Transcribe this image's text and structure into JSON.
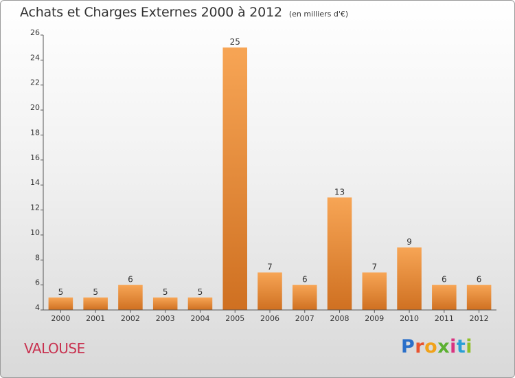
{
  "title": "Achats et Charges Externes 2000 à 2012",
  "subtitle": "(en milliers d'€)",
  "place": "VALOUSE",
  "logo": {
    "text": "Proxiti",
    "colors": [
      "#2a6fc9",
      "#e8532f",
      "#f1a21a",
      "#5bb031",
      "#d93380",
      "#2a9fd6",
      "#8fbf26"
    ]
  },
  "colors": {
    "bar_light": "#f7a555",
    "bar_dark": "#cf7021",
    "axis": "#555555"
  },
  "chart_data": {
    "type": "bar",
    "categories": [
      "2000",
      "2001",
      "2002",
      "2003",
      "2004",
      "2005",
      "2006",
      "2007",
      "2008",
      "2009",
      "2010",
      "2011",
      "2012"
    ],
    "values": [
      5,
      5,
      6,
      5,
      5,
      25,
      7,
      6,
      13,
      7,
      9,
      6,
      6
    ],
    "ylim": [
      4,
      26
    ],
    "yticks": [
      4,
      6,
      8,
      10,
      12,
      14,
      16,
      18,
      20,
      22,
      24,
      26
    ],
    "grid": false,
    "legend": "none",
    "data_labels": true
  }
}
